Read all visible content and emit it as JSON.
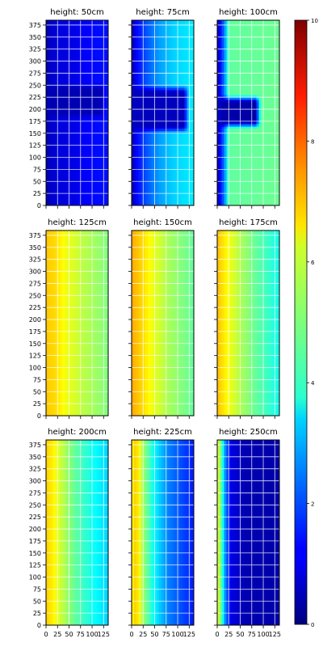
{
  "chart_data": {
    "type": "heatmap",
    "colormap": "jet",
    "color_range": [
      0,
      10
    ],
    "colorbar_ticks": [
      "0",
      "2",
      "4",
      "6",
      "8",
      "10"
    ],
    "x_range": [
      0,
      135
    ],
    "y_range": [
      0,
      385
    ],
    "x_ticks": [
      "0",
      "25",
      "50",
      "75",
      "100",
      "125"
    ],
    "y_ticks": [
      "0",
      "25",
      "50",
      "75",
      "100",
      "125",
      "150",
      "175",
      "200",
      "225",
      "250",
      "275",
      "300",
      "325",
      "350",
      "375"
    ],
    "grid": true,
    "panels": [
      {
        "title": "height:  50cm",
        "profile": [
          [
            0,
            0.4
          ],
          [
            10,
            0.7
          ],
          [
            25,
            0.9
          ],
          [
            60,
            1.0
          ],
          [
            100,
            1.3
          ],
          [
            135,
            1.4
          ]
        ],
        "blob": {
          "x0": 0,
          "x1": 130,
          "y0": 180,
          "y1": 255,
          "value": 0.5
        }
      },
      {
        "title": "height:  75cm",
        "profile": [
          [
            0,
            0.4
          ],
          [
            10,
            1.2
          ],
          [
            30,
            2.0
          ],
          [
            60,
            2.8
          ],
          [
            90,
            3.3
          ],
          [
            135,
            3.6
          ]
        ],
        "blob": {
          "x0": 0,
          "x1": 125,
          "y0": 150,
          "y1": 250,
          "value": 0.6
        }
      },
      {
        "title": "height: 100cm",
        "profile": [
          [
            0,
            0.6
          ],
          [
            10,
            1.6
          ],
          [
            18,
            3.0
          ],
          [
            25,
            4.7
          ],
          [
            135,
            4.8
          ]
        ],
        "blob": {
          "x0": 0,
          "x1": 95,
          "y0": 160,
          "y1": 230,
          "value": 0.4
        }
      },
      {
        "title": "height: 125cm",
        "profile": [
          [
            0,
            6.8
          ],
          [
            20,
            6.6
          ],
          [
            45,
            6.1
          ],
          [
            80,
            5.6
          ],
          [
            135,
            5.0
          ]
        ],
        "blob": null
      },
      {
        "title": "height: 150cm",
        "profile": [
          [
            0,
            7.1
          ],
          [
            20,
            6.7
          ],
          [
            45,
            6.1
          ],
          [
            80,
            5.4
          ],
          [
            135,
            4.7
          ]
        ],
        "blob": null
      },
      {
        "title": "height: 175cm",
        "profile": [
          [
            0,
            6.9
          ],
          [
            20,
            6.3
          ],
          [
            45,
            5.6
          ],
          [
            80,
            4.8
          ],
          [
            135,
            3.9
          ]
        ],
        "blob": null
      },
      {
        "title": "height: 200cm",
        "profile": [
          [
            0,
            6.7
          ],
          [
            15,
            6.4
          ],
          [
            30,
            5.8
          ],
          [
            60,
            4.8
          ],
          [
            100,
            3.9
          ],
          [
            135,
            3.3
          ]
        ],
        "blob": null
      },
      {
        "title": "height: 225cm",
        "profile": [
          [
            0,
            6.3
          ],
          [
            10,
            6.8
          ],
          [
            25,
            5.3
          ],
          [
            50,
            3.7
          ],
          [
            80,
            2.5
          ],
          [
            135,
            1.5
          ]
        ],
        "blob": null
      },
      {
        "title": "height: 250cm",
        "profile": [
          [
            0,
            6.0
          ],
          [
            8,
            5.0
          ],
          [
            18,
            2.5
          ],
          [
            30,
            1.0
          ],
          [
            60,
            0.5
          ],
          [
            135,
            0.4
          ]
        ],
        "blob": null
      }
    ]
  }
}
